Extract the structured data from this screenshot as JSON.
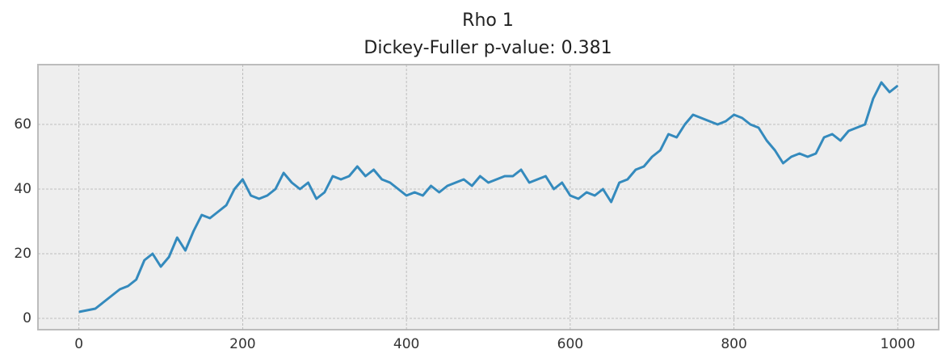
{
  "chart_data": {
    "type": "line",
    "title": "Rho 1",
    "subtitle": "Dickey-Fuller p-value: 0.381",
    "x": [
      0,
      10,
      20,
      30,
      40,
      50,
      60,
      70,
      80,
      90,
      100,
      110,
      120,
      130,
      140,
      150,
      160,
      170,
      180,
      190,
      200,
      210,
      220,
      230,
      240,
      250,
      260,
      270,
      280,
      290,
      300,
      310,
      320,
      330,
      340,
      350,
      360,
      370,
      380,
      390,
      400,
      410,
      420,
      430,
      440,
      450,
      460,
      470,
      480,
      490,
      500,
      510,
      520,
      530,
      540,
      550,
      560,
      570,
      580,
      590,
      600,
      610,
      620,
      630,
      640,
      650,
      660,
      670,
      680,
      690,
      700,
      710,
      720,
      730,
      740,
      750,
      760,
      770,
      780,
      790,
      800,
      810,
      820,
      830,
      840,
      850,
      860,
      870,
      880,
      890,
      900,
      910,
      920,
      930,
      940,
      950,
      960,
      970,
      980,
      990,
      1000
    ],
    "series": [
      {
        "color": "#348abd",
        "values": [
          2,
          2.5,
          3,
          5,
          7,
          9,
          10,
          12,
          18,
          20,
          16,
          19,
          25,
          21,
          27,
          32,
          31,
          33,
          35,
          40,
          43,
          38,
          37,
          38,
          40,
          45,
          42,
          40,
          42,
          37,
          39,
          44,
          43,
          44,
          47,
          44,
          46,
          43,
          42,
          40,
          38,
          39,
          38,
          41,
          39,
          41,
          42,
          43,
          41,
          44,
          42,
          43,
          44,
          44,
          46,
          42,
          43,
          44,
          40,
          42,
          38,
          37,
          39,
          38,
          40,
          36,
          42,
          43,
          46,
          47,
          50,
          52,
          57,
          56,
          60,
          63,
          62,
          61,
          60,
          61,
          63,
          62,
          60,
          59,
          55,
          52,
          48,
          50,
          51,
          50,
          51,
          56,
          57,
          55,
          58,
          59,
          60,
          68,
          73,
          70,
          72
        ]
      }
    ],
    "xlim": [
      -50,
      1050
    ],
    "xticks": [
      0,
      200,
      400,
      600,
      800,
      1000
    ],
    "ylim": [
      -3.5,
      78.5
    ],
    "yticks": [
      0,
      20,
      40,
      60
    ],
    "grid": true
  }
}
